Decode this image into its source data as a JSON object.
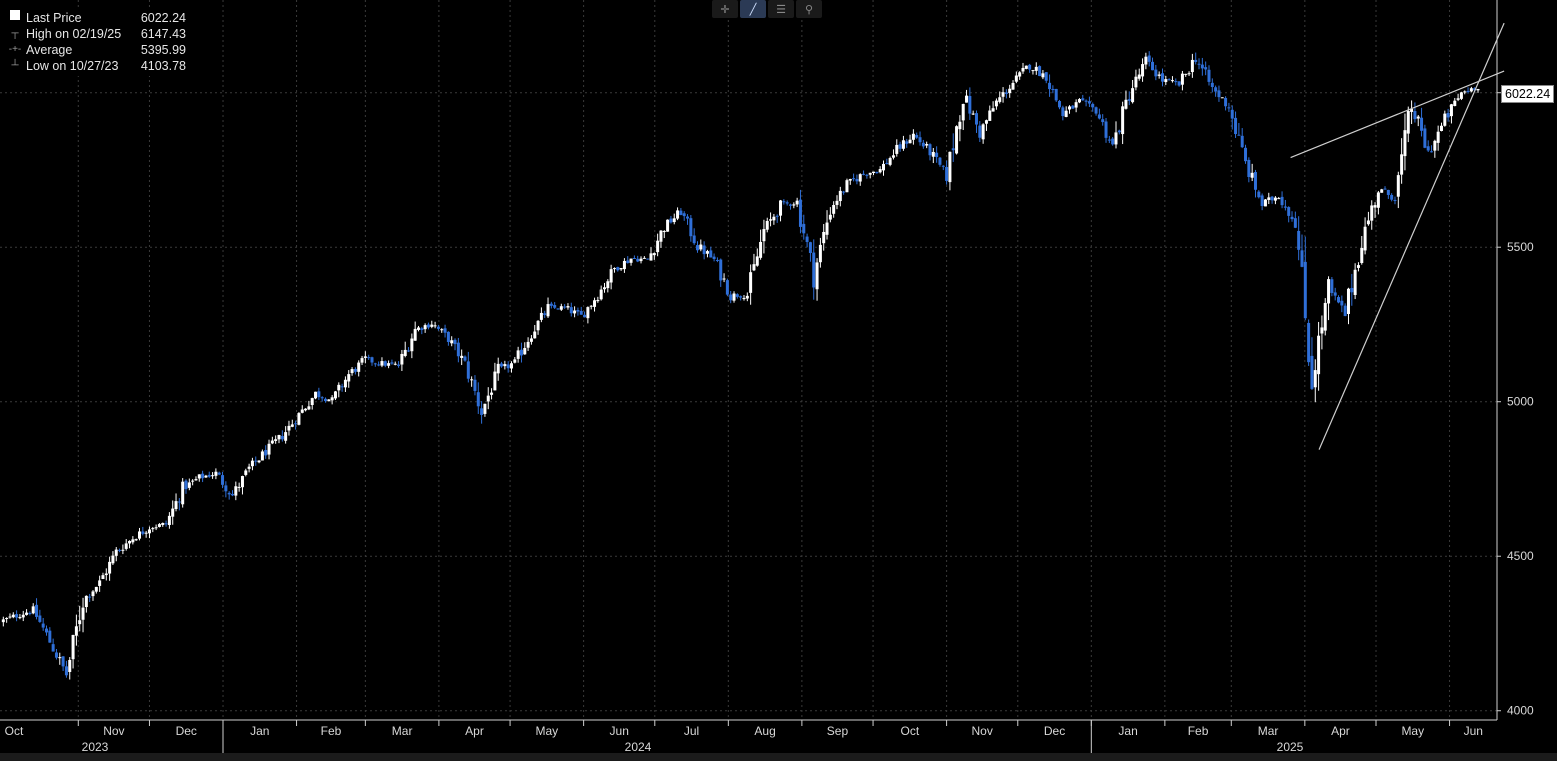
{
  "legend": {
    "last_label": "Last Price",
    "last_value": "6022.24",
    "high_label": "High on 02/19/25",
    "high_value": "6147.43",
    "avg_label": "Average",
    "avg_value": "5395.99",
    "low_label": "Low on 10/27/23",
    "low_value": "4103.78"
  },
  "toolbar": {
    "icons": [
      "crosshair-icon",
      "draw-line-icon",
      "list-icon",
      "zoom-icon"
    ]
  },
  "price_tag": "6022.24",
  "colors": {
    "up": "#ffffff",
    "down": "#2f6fd8",
    "grid": "#3a3a3a",
    "axis": "#cfcfcf",
    "trendline": "#cfcfcf"
  },
  "chart_data": {
    "type": "candlestick",
    "title": "",
    "xlabel": "",
    "ylabel": "",
    "ylim": [
      3970,
      6300
    ],
    "y_ticks": [
      4000,
      4500,
      5000,
      5500,
      6000
    ],
    "x_month_labels": [
      "Oct",
      "Nov",
      "Dec",
      "Jan",
      "Feb",
      "Mar",
      "Apr",
      "May",
      "Jun",
      "Jul",
      "Aug",
      "Sep",
      "Oct",
      "Nov",
      "Dec",
      "Jan",
      "Feb",
      "Mar",
      "Apr",
      "May",
      "Jun"
    ],
    "x_year_labels": [
      "2023",
      "2024",
      "2025"
    ],
    "grid": true,
    "x_range": [
      "2023-09-29",
      "2025-06-13"
    ],
    "closes": [
      [
        "2023-09-29",
        4288
      ],
      [
        "2023-10-06",
        4308
      ],
      [
        "2023-10-13",
        4327
      ],
      [
        "2023-10-20",
        4224
      ],
      [
        "2023-10-27",
        4117
      ],
      [
        "2023-11-03",
        4358
      ],
      [
        "2023-11-10",
        4415
      ],
      [
        "2023-11-17",
        4514
      ],
      [
        "2023-11-24",
        4559
      ],
      [
        "2023-12-01",
        4594
      ],
      [
        "2023-12-08",
        4604
      ],
      [
        "2023-12-15",
        4719
      ],
      [
        "2023-12-22",
        4754
      ],
      [
        "2023-12-29",
        4769
      ],
      [
        "2024-01-05",
        4697
      ],
      [
        "2024-01-12",
        4783
      ],
      [
        "2024-01-19",
        4839
      ],
      [
        "2024-01-26",
        4890
      ],
      [
        "2024-02-02",
        4958
      ],
      [
        "2024-02-09",
        5026
      ],
      [
        "2024-02-16",
        5005
      ],
      [
        "2024-02-23",
        5088
      ],
      [
        "2024-03-01",
        5137
      ],
      [
        "2024-03-08",
        5123
      ],
      [
        "2024-03-15",
        5117
      ],
      [
        "2024-03-22",
        5234
      ],
      [
        "2024-03-29",
        5254
      ],
      [
        "2024-04-05",
        5204
      ],
      [
        "2024-04-12",
        5123
      ],
      [
        "2024-04-19",
        4967
      ],
      [
        "2024-04-26",
        5099
      ],
      [
        "2024-05-03",
        5127
      ],
      [
        "2024-05-10",
        5222
      ],
      [
        "2024-05-17",
        5303
      ],
      [
        "2024-05-24",
        5304
      ],
      [
        "2024-05-31",
        5277
      ],
      [
        "2024-06-07",
        5346
      ],
      [
        "2024-06-14",
        5431
      ],
      [
        "2024-06-21",
        5464
      ],
      [
        "2024-06-28",
        5460
      ],
      [
        "2024-07-05",
        5567
      ],
      [
        "2024-07-12",
        5615
      ],
      [
        "2024-07-19",
        5505
      ],
      [
        "2024-07-26",
        5459
      ],
      [
        "2024-08-02",
        5346
      ],
      [
        "2024-08-09",
        5344
      ],
      [
        "2024-08-16",
        5554
      ],
      [
        "2024-08-23",
        5634
      ],
      [
        "2024-08-30",
        5648
      ],
      [
        "2024-09-06",
        5408
      ],
      [
        "2024-09-13",
        5626
      ],
      [
        "2024-09-20",
        5702
      ],
      [
        "2024-09-27",
        5738
      ],
      [
        "2024-10-04",
        5751
      ],
      [
        "2024-10-11",
        5815
      ],
      [
        "2024-10-18",
        5864
      ],
      [
        "2024-10-25",
        5808
      ],
      [
        "2024-11-01",
        5728
      ],
      [
        "2024-11-08",
        5995
      ],
      [
        "2024-11-15",
        5870
      ],
      [
        "2024-11-22",
        5969
      ],
      [
        "2024-11-29",
        6032
      ],
      [
        "2024-12-06",
        6090
      ],
      [
        "2024-12-13",
        6051
      ],
      [
        "2024-12-20",
        5930
      ],
      [
        "2024-12-27",
        5970
      ],
      [
        "2025-01-03",
        5942
      ],
      [
        "2025-01-10",
        5827
      ],
      [
        "2025-01-17",
        5997
      ],
      [
        "2025-01-24",
        6101
      ],
      [
        "2025-01-31",
        6041
      ],
      [
        "2025-02-07",
        6026
      ],
      [
        "2025-02-14",
        6115
      ],
      [
        "2025-02-21",
        6013
      ],
      [
        "2025-02-28",
        5955
      ],
      [
        "2025-03-07",
        5770
      ],
      [
        "2025-03-14",
        5639
      ],
      [
        "2025-03-21",
        5668
      ],
      [
        "2025-03-28",
        5581
      ],
      [
        "2025-04-04",
        5074
      ],
      [
        "2025-04-11",
        5363
      ],
      [
        "2025-04-18",
        5283
      ],
      [
        "2025-04-25",
        5525
      ],
      [
        "2025-05-02",
        5687
      ],
      [
        "2025-05-09",
        5660
      ],
      [
        "2025-05-16",
        5958
      ],
      [
        "2025-05-23",
        5803
      ],
      [
        "2025-05-30",
        5912
      ],
      [
        "2025-06-06",
        6000
      ],
      [
        "2025-06-13",
        6022
      ]
    ],
    "trendlines": [
      [
        [
          "2025-03-26",
          5790
        ],
        [
          "2025-06-24",
          6070
        ]
      ],
      [
        [
          "2025-04-07",
          4845
        ],
        [
          "2025-06-24",
          6225
        ]
      ]
    ]
  }
}
